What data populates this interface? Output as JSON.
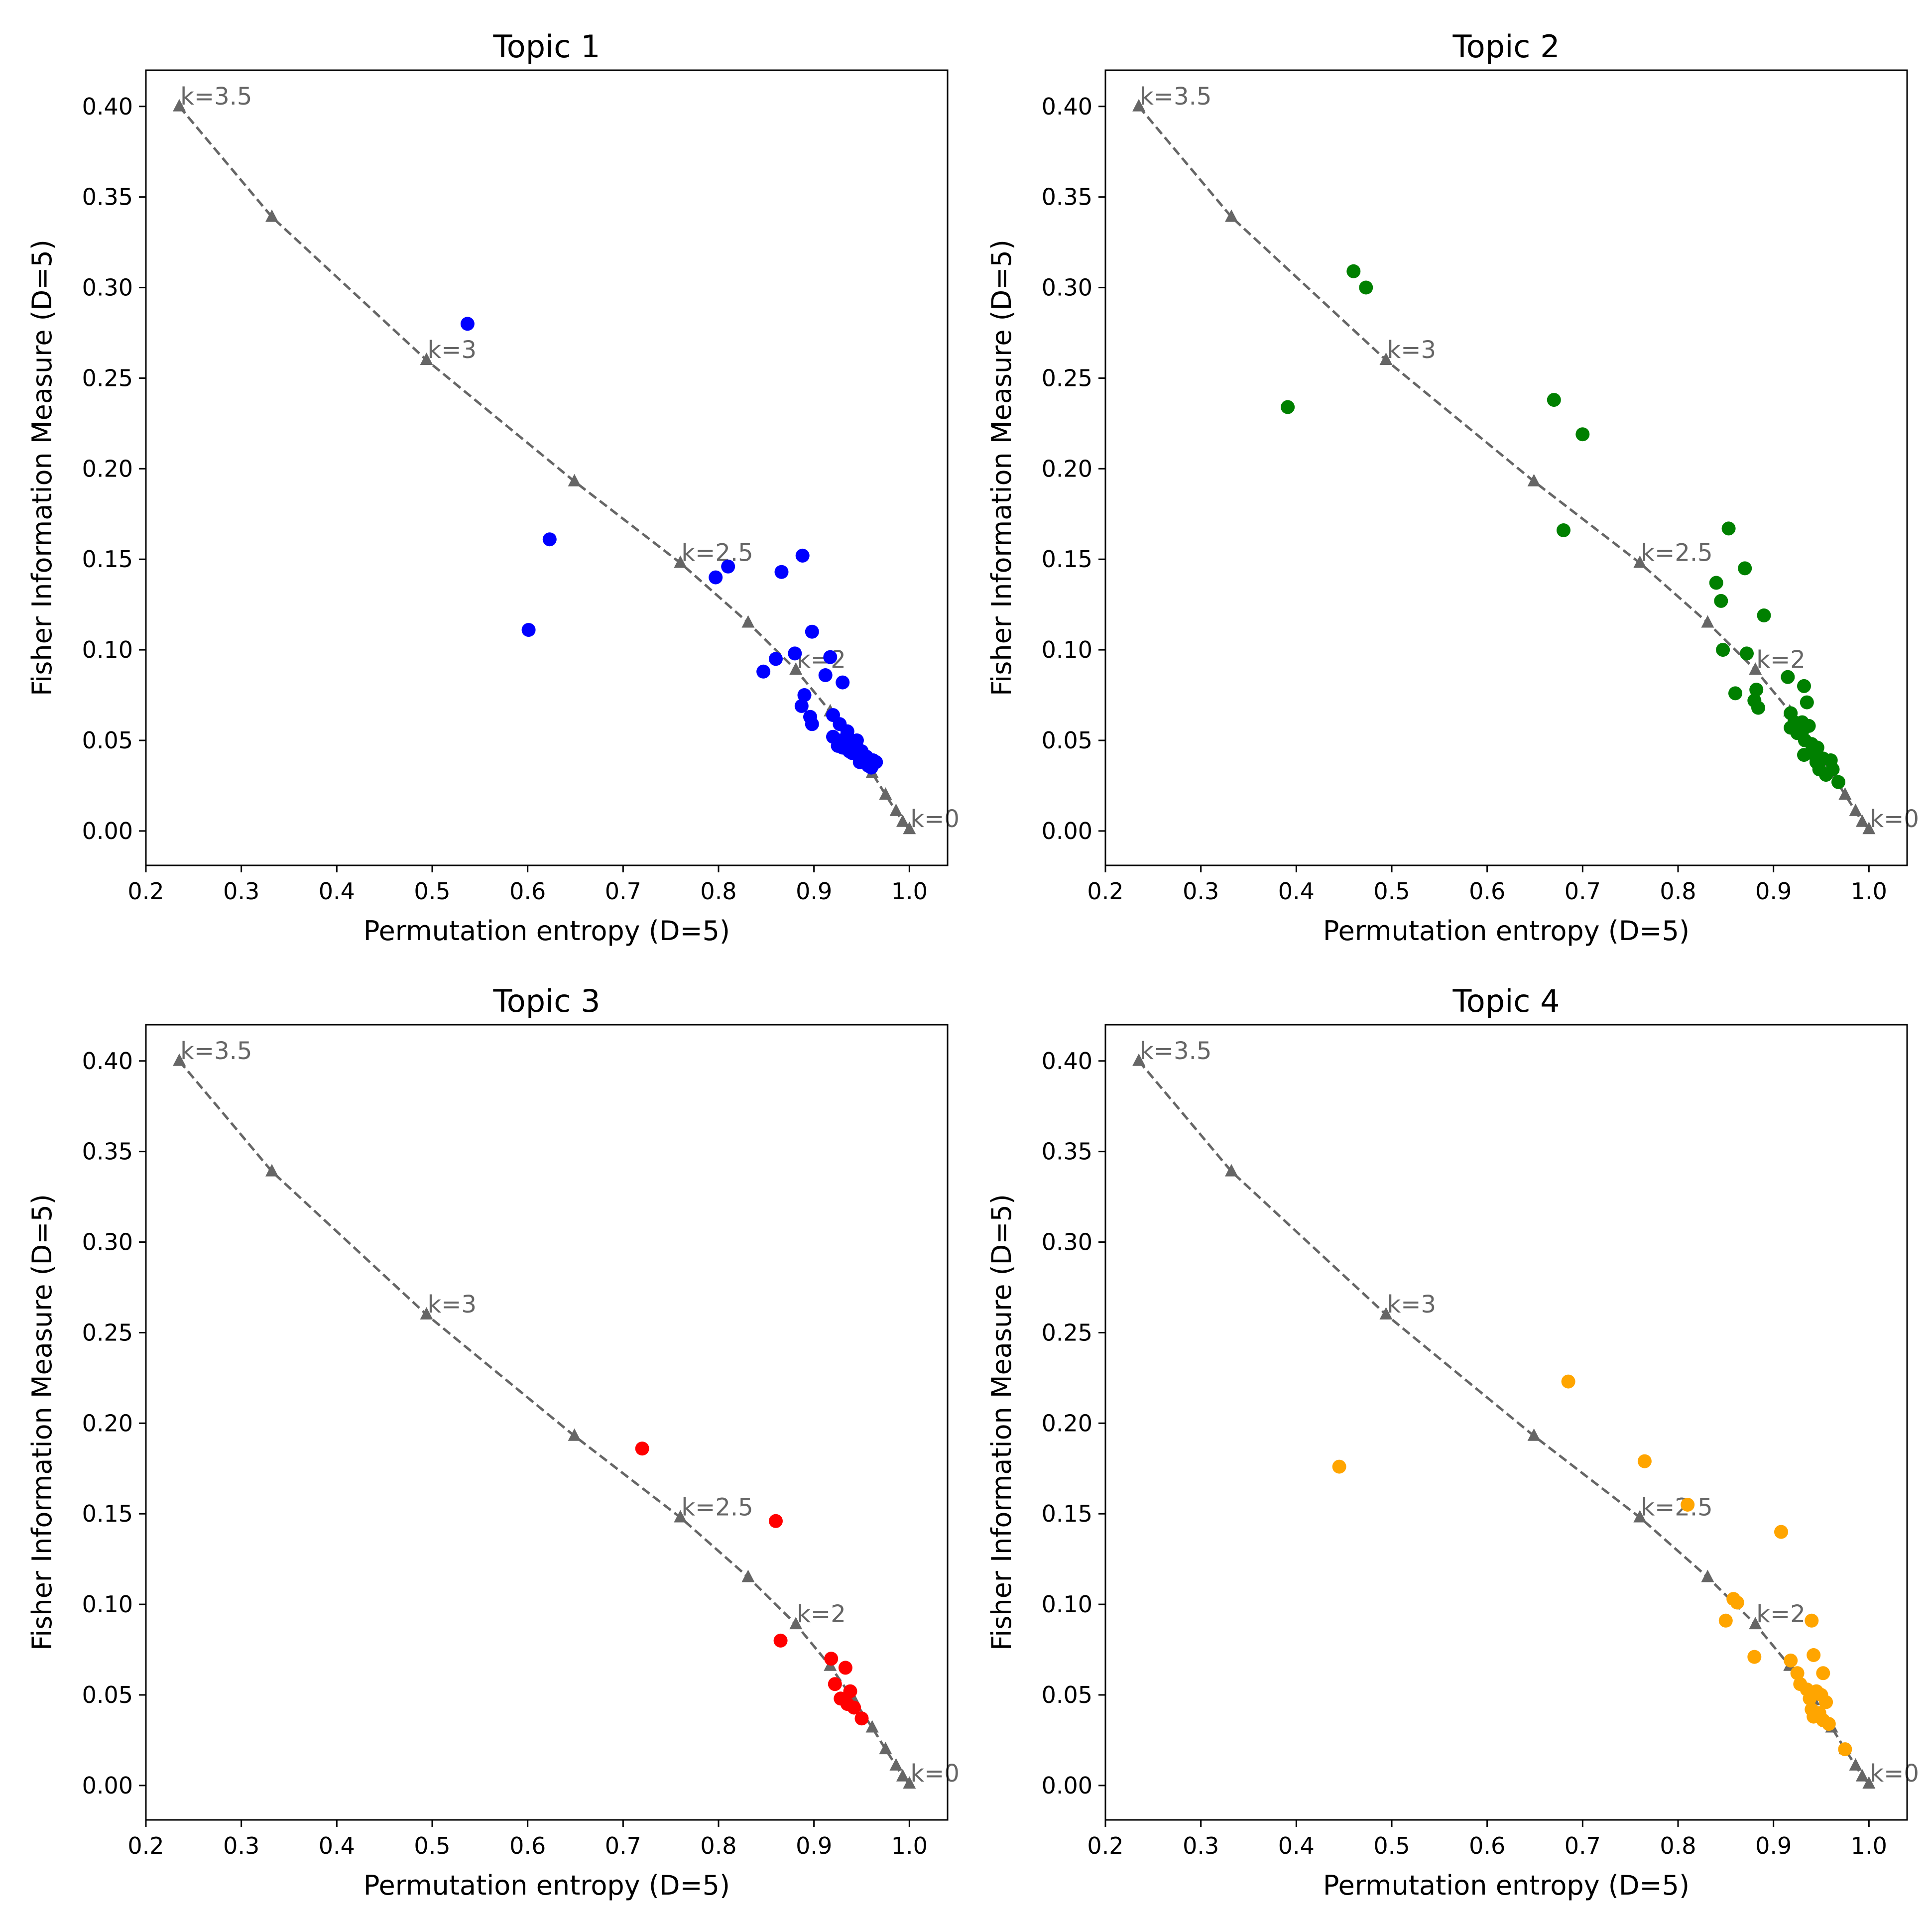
{
  "chart_data": [
    {
      "type": "scatter",
      "title": "Topic 1",
      "xlabel": "Permutation entropy (D=5)",
      "ylabel": "Fisher Information Measure (D=5)",
      "xlim": [
        0.2,
        1.04
      ],
      "ylim": [
        -0.019,
        0.42
      ],
      "xticks": [
        0.2,
        0.3,
        0.4,
        0.5,
        0.6,
        0.7,
        0.8,
        0.9,
        1.0
      ],
      "xtick_labels": [
        "0.2",
        "0.3",
        "0.4",
        "0.5",
        "0.6",
        "0.7",
        "0.8",
        "0.9",
        "1.0"
      ],
      "yticks": [
        0.0,
        0.05,
        0.1,
        0.15,
        0.2,
        0.25,
        0.3,
        0.35,
        0.4
      ],
      "ytick_labels": [
        "0.00",
        "0.05",
        "0.10",
        "0.15",
        "0.20",
        "0.25",
        "0.30",
        "0.35",
        "0.40"
      ],
      "point_color": "#0000ff",
      "reference_curve": {
        "color": "#666666",
        "style": "dashed line with triangle markers",
        "points": [
          [
            0.235,
            0.4
          ],
          [
            0.332,
            0.339
          ],
          [
            0.494,
            0.26
          ],
          [
            0.649,
            0.193
          ],
          [
            0.76,
            0.148
          ],
          [
            0.831,
            0.115
          ],
          [
            0.881,
            0.089
          ],
          [
            0.917,
            0.066
          ],
          [
            0.942,
            0.047
          ],
          [
            0.961,
            0.032
          ],
          [
            0.975,
            0.02
          ],
          [
            0.986,
            0.011
          ],
          [
            0.993,
            0.005
          ],
          [
            1.0,
            0.001
          ]
        ],
        "labels": [
          {
            "text": "k=3.5",
            "x": 0.235,
            "y": 0.4
          },
          {
            "text": "k=3",
            "x": 0.494,
            "y": 0.26
          },
          {
            "text": "k=2.5",
            "x": 0.76,
            "y": 0.148
          },
          {
            "text": "k=2",
            "x": 0.881,
            "y": 0.089
          },
          {
            "text": "k=0",
            "x": 1.0,
            "y": 0.001
          }
        ]
      },
      "points": [
        [
          0.537,
          0.28
        ],
        [
          0.623,
          0.161
        ],
        [
          0.601,
          0.111
        ],
        [
          0.797,
          0.14
        ],
        [
          0.81,
          0.146
        ],
        [
          0.866,
          0.143
        ],
        [
          0.888,
          0.152
        ],
        [
          0.898,
          0.11
        ],
        [
          0.847,
          0.088
        ],
        [
          0.86,
          0.095
        ],
        [
          0.88,
          0.098
        ],
        [
          0.917,
          0.096
        ],
        [
          0.912,
          0.086
        ],
        [
          0.93,
          0.082
        ],
        [
          0.89,
          0.075
        ],
        [
          0.887,
          0.069
        ],
        [
          0.896,
          0.063
        ],
        [
          0.898,
          0.059
        ],
        [
          0.92,
          0.064
        ],
        [
          0.927,
          0.059
        ],
        [
          0.935,
          0.055
        ],
        [
          0.92,
          0.052
        ],
        [
          0.928,
          0.05
        ],
        [
          0.94,
          0.05
        ],
        [
          0.93,
          0.046
        ],
        [
          0.945,
          0.046
        ],
        [
          0.95,
          0.044
        ],
        [
          0.937,
          0.044
        ],
        [
          0.955,
          0.041
        ],
        [
          0.962,
          0.039
        ],
        [
          0.948,
          0.038
        ],
        [
          0.957,
          0.036
        ],
        [
          0.965,
          0.038
        ],
        [
          0.94,
          0.043
        ],
        [
          0.925,
          0.047
        ],
        [
          0.952,
          0.04
        ],
        [
          0.932,
          0.048
        ],
        [
          0.945,
          0.05
        ],
        [
          0.96,
          0.035
        ]
      ]
    },
    {
      "type": "scatter",
      "title": "Topic 2",
      "xlabel": "Permutation entropy (D=5)",
      "ylabel": "Fisher Information Measure (D=5)",
      "xlim": [
        0.2,
        1.04
      ],
      "ylim": [
        -0.019,
        0.42
      ],
      "xticks": [
        0.2,
        0.3,
        0.4,
        0.5,
        0.6,
        0.7,
        0.8,
        0.9,
        1.0
      ],
      "xtick_labels": [
        "0.2",
        "0.3",
        "0.4",
        "0.5",
        "0.6",
        "0.7",
        "0.8",
        "0.9",
        "1.0"
      ],
      "yticks": [
        0.0,
        0.05,
        0.1,
        0.15,
        0.2,
        0.25,
        0.3,
        0.35,
        0.4
      ],
      "ytick_labels": [
        "0.00",
        "0.05",
        "0.10",
        "0.15",
        "0.20",
        "0.25",
        "0.30",
        "0.35",
        "0.40"
      ],
      "point_color": "#008000",
      "reference_curve": {
        "color": "#666666",
        "style": "dashed line with triangle markers",
        "points": [
          [
            0.235,
            0.4
          ],
          [
            0.332,
            0.339
          ],
          [
            0.494,
            0.26
          ],
          [
            0.649,
            0.193
          ],
          [
            0.76,
            0.148
          ],
          [
            0.831,
            0.115
          ],
          [
            0.881,
            0.089
          ],
          [
            0.917,
            0.066
          ],
          [
            0.942,
            0.047
          ],
          [
            0.961,
            0.032
          ],
          [
            0.975,
            0.02
          ],
          [
            0.986,
            0.011
          ],
          [
            0.993,
            0.005
          ],
          [
            1.0,
            0.001
          ]
        ],
        "labels": [
          {
            "text": "k=3.5",
            "x": 0.235,
            "y": 0.4
          },
          {
            "text": "k=3",
            "x": 0.494,
            "y": 0.26
          },
          {
            "text": "k=2.5",
            "x": 0.76,
            "y": 0.148
          },
          {
            "text": "k=2",
            "x": 0.881,
            "y": 0.089
          },
          {
            "text": "k=0",
            "x": 1.0,
            "y": 0.001
          }
        ]
      },
      "points": [
        [
          0.46,
          0.309
        ],
        [
          0.473,
          0.3
        ],
        [
          0.391,
          0.234
        ],
        [
          0.67,
          0.238
        ],
        [
          0.7,
          0.219
        ],
        [
          0.68,
          0.166
        ],
        [
          0.853,
          0.167
        ],
        [
          0.87,
          0.145
        ],
        [
          0.84,
          0.137
        ],
        [
          0.845,
          0.127
        ],
        [
          0.89,
          0.119
        ],
        [
          0.847,
          0.1
        ],
        [
          0.872,
          0.098
        ],
        [
          0.86,
          0.076
        ],
        [
          0.882,
          0.078
        ],
        [
          0.88,
          0.072
        ],
        [
          0.884,
          0.068
        ],
        [
          0.915,
          0.085
        ],
        [
          0.932,
          0.08
        ],
        [
          0.935,
          0.071
        ],
        [
          0.918,
          0.065
        ],
        [
          0.922,
          0.06
        ],
        [
          0.918,
          0.057
        ],
        [
          0.93,
          0.06
        ],
        [
          0.937,
          0.058
        ],
        [
          0.925,
          0.054
        ],
        [
          0.933,
          0.05
        ],
        [
          0.94,
          0.048
        ],
        [
          0.946,
          0.046
        ],
        [
          0.932,
          0.042
        ],
        [
          0.952,
          0.04
        ],
        [
          0.945,
          0.038
        ],
        [
          0.96,
          0.039
        ],
        [
          0.948,
          0.034
        ],
        [
          0.955,
          0.031
        ],
        [
          0.962,
          0.034
        ],
        [
          0.968,
          0.027
        ],
        [
          0.93,
          0.055
        ],
        [
          0.94,
          0.043
        ]
      ]
    },
    {
      "type": "scatter",
      "title": "Topic 3",
      "xlabel": "Permutation entropy (D=5)",
      "ylabel": "Fisher Information Measure (D=5)",
      "xlim": [
        0.2,
        1.04
      ],
      "ylim": [
        -0.019,
        0.42
      ],
      "xticks": [
        0.2,
        0.3,
        0.4,
        0.5,
        0.6,
        0.7,
        0.8,
        0.9,
        1.0
      ],
      "xtick_labels": [
        "0.2",
        "0.3",
        "0.4",
        "0.5",
        "0.6",
        "0.7",
        "0.8",
        "0.9",
        "1.0"
      ],
      "yticks": [
        0.0,
        0.05,
        0.1,
        0.15,
        0.2,
        0.25,
        0.3,
        0.35,
        0.4
      ],
      "ytick_labels": [
        "0.00",
        "0.05",
        "0.10",
        "0.15",
        "0.20",
        "0.25",
        "0.30",
        "0.35",
        "0.40"
      ],
      "point_color": "#ff0000",
      "reference_curve": {
        "color": "#666666",
        "style": "dashed line with triangle markers",
        "points": [
          [
            0.235,
            0.4
          ],
          [
            0.332,
            0.339
          ],
          [
            0.494,
            0.26
          ],
          [
            0.649,
            0.193
          ],
          [
            0.76,
            0.148
          ],
          [
            0.831,
            0.115
          ],
          [
            0.881,
            0.089
          ],
          [
            0.917,
            0.066
          ],
          [
            0.942,
            0.047
          ],
          [
            0.961,
            0.032
          ],
          [
            0.975,
            0.02
          ],
          [
            0.986,
            0.011
          ],
          [
            0.993,
            0.005
          ],
          [
            1.0,
            0.001
          ]
        ],
        "labels": [
          {
            "text": "k=3.5",
            "x": 0.235,
            "y": 0.4
          },
          {
            "text": "k=3",
            "x": 0.494,
            "y": 0.26
          },
          {
            "text": "k=2.5",
            "x": 0.76,
            "y": 0.148
          },
          {
            "text": "k=2",
            "x": 0.881,
            "y": 0.089
          },
          {
            "text": "k=0",
            "x": 1.0,
            "y": 0.001
          }
        ]
      },
      "points": [
        [
          0.72,
          0.186
        ],
        [
          0.86,
          0.146
        ],
        [
          0.865,
          0.08
        ],
        [
          0.918,
          0.07
        ],
        [
          0.933,
          0.065
        ],
        [
          0.922,
          0.056
        ],
        [
          0.938,
          0.052
        ],
        [
          0.928,
          0.048
        ],
        [
          0.935,
          0.045
        ],
        [
          0.942,
          0.043
        ],
        [
          0.95,
          0.037
        ]
      ]
    },
    {
      "type": "scatter",
      "title": "Topic 4",
      "xlabel": "Permutation entropy (D=5)",
      "ylabel": "Fisher Information Measure (D=5)",
      "xlim": [
        0.2,
        1.04
      ],
      "ylim": [
        -0.019,
        0.42
      ],
      "xticks": [
        0.2,
        0.3,
        0.4,
        0.5,
        0.6,
        0.7,
        0.8,
        0.9,
        1.0
      ],
      "xtick_labels": [
        "0.2",
        "0.3",
        "0.4",
        "0.5",
        "0.6",
        "0.7",
        "0.8",
        "0.9",
        "1.0"
      ],
      "yticks": [
        0.0,
        0.05,
        0.1,
        0.15,
        0.2,
        0.25,
        0.3,
        0.35,
        0.4
      ],
      "ytick_labels": [
        "0.00",
        "0.05",
        "0.10",
        "0.15",
        "0.20",
        "0.25",
        "0.30",
        "0.35",
        "0.40"
      ],
      "point_color": "#ffa500",
      "reference_curve": {
        "color": "#666666",
        "style": "dashed line with triangle markers",
        "points": [
          [
            0.235,
            0.4
          ],
          [
            0.332,
            0.339
          ],
          [
            0.494,
            0.26
          ],
          [
            0.649,
            0.193
          ],
          [
            0.76,
            0.148
          ],
          [
            0.831,
            0.115
          ],
          [
            0.881,
            0.089
          ],
          [
            0.917,
            0.066
          ],
          [
            0.942,
            0.047
          ],
          [
            0.961,
            0.032
          ],
          [
            0.975,
            0.02
          ],
          [
            0.986,
            0.011
          ],
          [
            0.993,
            0.005
          ],
          [
            1.0,
            0.001
          ]
        ],
        "labels": [
          {
            "text": "k=3.5",
            "x": 0.235,
            "y": 0.4
          },
          {
            "text": "k=3",
            "x": 0.494,
            "y": 0.26
          },
          {
            "text": "k=2.5",
            "x": 0.76,
            "y": 0.148
          },
          {
            "text": "k=2",
            "x": 0.881,
            "y": 0.089
          },
          {
            "text": "k=0",
            "x": 1.0,
            "y": 0.001
          }
        ]
      },
      "points": [
        [
          0.445,
          0.176
        ],
        [
          0.685,
          0.223
        ],
        [
          0.765,
          0.179
        ],
        [
          0.81,
          0.155
        ],
        [
          0.908,
          0.14
        ],
        [
          0.858,
          0.103
        ],
        [
          0.862,
          0.101
        ],
        [
          0.85,
          0.091
        ],
        [
          0.88,
          0.071
        ],
        [
          0.94,
          0.091
        ],
        [
          0.918,
          0.069
        ],
        [
          0.942,
          0.072
        ],
        [
          0.925,
          0.062
        ],
        [
          0.952,
          0.062
        ],
        [
          0.928,
          0.056
        ],
        [
          0.935,
          0.053
        ],
        [
          0.945,
          0.052
        ],
        [
          0.95,
          0.05
        ],
        [
          0.938,
          0.048
        ],
        [
          0.955,
          0.046
        ],
        [
          0.94,
          0.042
        ],
        [
          0.948,
          0.04
        ],
        [
          0.942,
          0.038
        ],
        [
          0.952,
          0.036
        ],
        [
          0.958,
          0.034
        ],
        [
          0.975,
          0.02
        ]
      ]
    }
  ]
}
